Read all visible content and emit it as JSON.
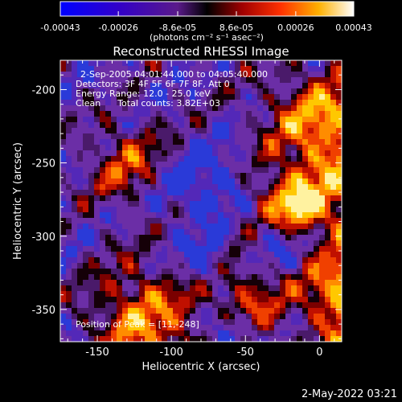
{
  "chart_data": {
    "type": "heatmap",
    "title": "Reconstructed RHESSI Image",
    "xlabel": "Heliocentric X (arcsec)",
    "ylabel": "Heliocentric Y (arcsec)",
    "xlim": [
      -175,
      15
    ],
    "ylim": [
      -372,
      -180
    ],
    "x_ticks": [
      -150,
      -100,
      -50,
      0
    ],
    "y_ticks": [
      -200,
      -250,
      -300,
      -350
    ],
    "colorbar": {
      "range": [
        -0.00043,
        0.00043
      ],
      "tick_values": [
        -0.00043,
        -0.00026,
        -8.6e-05,
        8.6e-05,
        0.00026,
        0.00043
      ],
      "tick_labels": [
        "-0.00043",
        "-0.00026",
        "-8.6e-05",
        "8.6e-05",
        "0.00026",
        "0.00043"
      ],
      "units": "(photons cm⁻² s⁻¹ asec⁻²)"
    },
    "info_lines": [
      "2-Sep-2005 04:01:44.000 to 04:05:40.000",
      "Detectors: 3F 4F 5F 6F 7F 8F, Att 0",
      "Energy Range: 12.0 - 25.0 keV",
      "Clean      Total counts: 3.82E+03"
    ],
    "peak_label": "Position of Peak = [11,-248]",
    "peak_position": [
      11,
      -248
    ]
  },
  "footer": {
    "timestamp": "2-May-2022 03:21"
  }
}
